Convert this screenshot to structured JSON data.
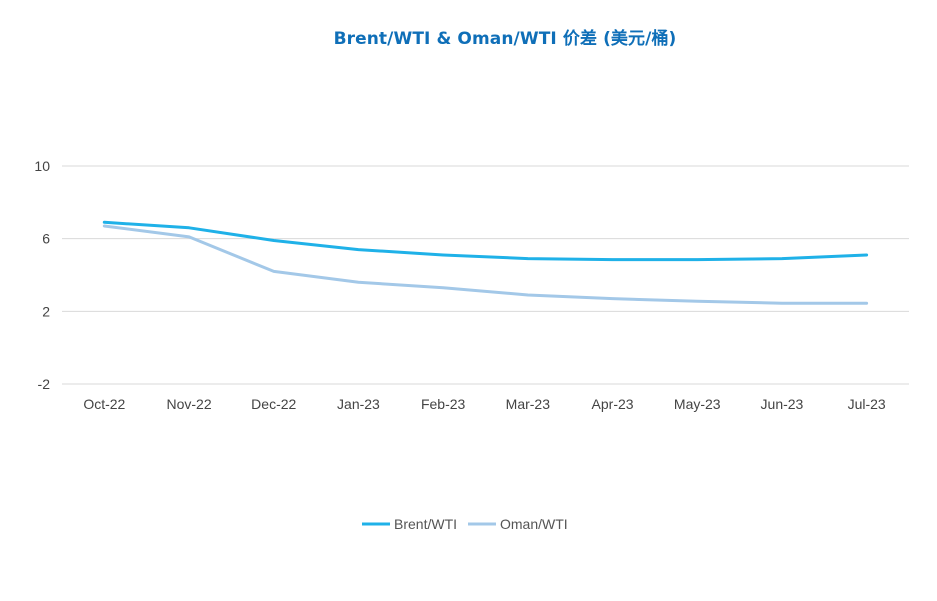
{
  "chart_data": {
    "type": "line",
    "title": "Brent/WTI & Oman/WTI 价差 (美元/桶)",
    "xlabel": "",
    "ylabel": "",
    "categories": [
      "Oct-22",
      "Nov-22",
      "Dec-22",
      "Jan-23",
      "Feb-23",
      "Mar-23",
      "Apr-23",
      "May-23",
      "Jun-23",
      "Jul-23"
    ],
    "yticks": [
      "10",
      "6",
      "2",
      "-2"
    ],
    "ylim": [
      -2,
      10
    ],
    "grid": true,
    "legend_position": "bottom",
    "series": [
      {
        "name": "Brent/WTI",
        "color": "#1fb1e8",
        "values": [
          6.9,
          6.6,
          5.9,
          5.4,
          5.1,
          4.9,
          4.85,
          4.85,
          4.9,
          5.1
        ]
      },
      {
        "name": "Oman/WTI",
        "color": "#a3c8e8",
        "values": [
          6.7,
          6.1,
          4.2,
          3.6,
          3.3,
          2.9,
          2.7,
          2.55,
          2.45,
          2.45
        ]
      }
    ]
  }
}
